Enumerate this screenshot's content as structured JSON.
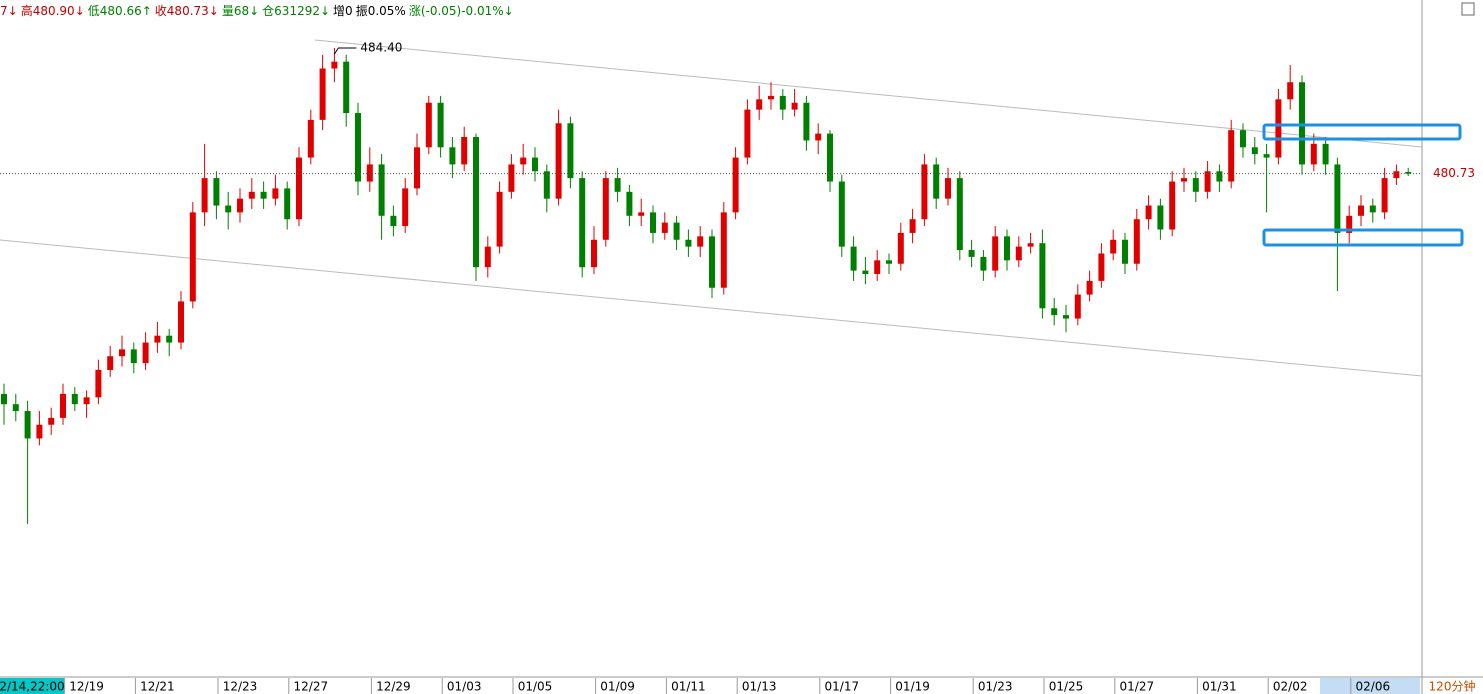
{
  "chart_data": {
    "type": "candlestick",
    "header": [
      {
        "text": "7↓",
        "color": "#c00000"
      },
      {
        "text": "高480.90↓",
        "color": "#c00000"
      },
      {
        "text": "低480.66↑",
        "color": "#008000"
      },
      {
        "text": "收480.73↓",
        "color": "#c00000"
      },
      {
        "text": "量68↓",
        "color": "#008000"
      },
      {
        "text": "仓631292↓",
        "color": "#008000"
      },
      {
        "text": "增0",
        "color": "#000000"
      },
      {
        "text": "振0.05%",
        "color": "#000000"
      },
      {
        "text": "涨(-0.05)-0.01%↓",
        "color": "#008000"
      }
    ],
    "cursor_label": "2/14,22:00",
    "period": "120分钟",
    "max_label": "484.40",
    "up_color": "#e00000",
    "down_color": "#008000",
    "ylim": [
      466.24,
      485.8
    ],
    "categories": [
      null,
      null,
      null,
      null,
      null,
      null,
      null,
      "12/19",
      null,
      null,
      null,
      null,
      null,
      "12/21",
      null,
      null,
      null,
      null,
      null,
      null,
      "12/23",
      null,
      null,
      null,
      null,
      null,
      "12/27",
      null,
      null,
      null,
      null,
      null,
      null,
      "12/29",
      null,
      null,
      null,
      null,
      null,
      "01/03",
      null,
      null,
      null,
      null,
      null,
      "01/05",
      null,
      null,
      null,
      null,
      null,
      null,
      "01/09",
      null,
      null,
      null,
      null,
      null,
      "01/11",
      null,
      null,
      null,
      null,
      null,
      "01/13",
      null,
      null,
      null,
      null,
      null,
      null,
      "01/17",
      null,
      null,
      null,
      null,
      null,
      "01/19",
      null,
      null,
      null,
      null,
      null,
      null,
      "01/23",
      null,
      null,
      null,
      null,
      null,
      "01/25",
      null,
      null,
      null,
      null,
      null,
      "01/27",
      null,
      null,
      null,
      null,
      null,
      null,
      "01/31",
      null,
      null,
      null,
      null,
      null,
      "02/02",
      null,
      null,
      null,
      null,
      null,
      null,
      "02/06",
      null,
      null,
      null
    ],
    "ohlc": [
      [
        474.3,
        474.6,
        473.4,
        474.0
      ],
      [
        474.0,
        474.3,
        473.5,
        473.8
      ],
      [
        473.8,
        474.1,
        470.5,
        473.0
      ],
      [
        473.0,
        473.8,
        472.8,
        473.4
      ],
      [
        473.4,
        473.9,
        473.1,
        473.6
      ],
      [
        473.6,
        474.6,
        473.4,
        474.3
      ],
      [
        474.3,
        474.5,
        473.8,
        474.0
      ],
      [
        474.0,
        474.4,
        473.6,
        474.2
      ],
      [
        474.2,
        475.3,
        474.0,
        475.0
      ],
      [
        475.0,
        475.7,
        474.8,
        475.4
      ],
      [
        475.4,
        476.0,
        475.1,
        475.6
      ],
      [
        475.6,
        475.8,
        474.9,
        475.2
      ],
      [
        475.2,
        476.1,
        475.0,
        475.8
      ],
      [
        475.8,
        476.4,
        475.5,
        476.0
      ],
      [
        476.0,
        476.2,
        475.4,
        475.8
      ],
      [
        475.8,
        477.3,
        475.6,
        477.0
      ],
      [
        477.0,
        479.9,
        476.8,
        479.6
      ],
      [
        479.6,
        481.6,
        479.2,
        480.6
      ],
      [
        480.6,
        480.8,
        479.4,
        479.8
      ],
      [
        479.8,
        480.2,
        479.1,
        479.6
      ],
      [
        479.6,
        480.3,
        479.3,
        480.0
      ],
      [
        480.0,
        480.6,
        479.7,
        480.2
      ],
      [
        480.2,
        480.5,
        479.7,
        480.0
      ],
      [
        480.0,
        480.7,
        479.8,
        480.3
      ],
      [
        480.3,
        480.5,
        479.1,
        479.4
      ],
      [
        479.4,
        481.5,
        479.2,
        481.2
      ],
      [
        481.2,
        482.6,
        481.0,
        482.3
      ],
      [
        482.3,
        484.2,
        482.0,
        483.8
      ],
      [
        483.8,
        484.4,
        483.4,
        484.0
      ],
      [
        484.0,
        484.2,
        482.1,
        482.5
      ],
      [
        482.5,
        482.8,
        480.1,
        480.5
      ],
      [
        480.5,
        481.5,
        480.2,
        481.0
      ],
      [
        481.0,
        481.3,
        478.8,
        479.5
      ],
      [
        479.5,
        479.8,
        478.9,
        479.2
      ],
      [
        479.2,
        480.6,
        479.0,
        480.3
      ],
      [
        480.3,
        481.9,
        480.1,
        481.5
      ],
      [
        481.5,
        483.0,
        481.3,
        482.8
      ],
      [
        482.8,
        483.0,
        481.2,
        481.5
      ],
      [
        481.5,
        481.8,
        480.6,
        481.0
      ],
      [
        481.0,
        482.1,
        480.8,
        481.8
      ],
      [
        481.8,
        481.9,
        477.6,
        478.0
      ],
      [
        478.0,
        478.9,
        477.7,
        478.6
      ],
      [
        478.6,
        480.5,
        478.4,
        480.2
      ],
      [
        480.2,
        481.3,
        480.0,
        481.0
      ],
      [
        481.0,
        481.6,
        480.7,
        481.2
      ],
      [
        481.2,
        481.5,
        480.5,
        480.8
      ],
      [
        480.8,
        481.0,
        479.6,
        480.0
      ],
      [
        480.0,
        482.6,
        479.8,
        482.2
      ],
      [
        482.2,
        482.4,
        480.3,
        480.6
      ],
      [
        480.6,
        480.8,
        477.7,
        478.0
      ],
      [
        478.0,
        479.2,
        477.8,
        478.8
      ],
      [
        478.8,
        480.8,
        478.6,
        480.6
      ],
      [
        480.6,
        480.9,
        479.9,
        480.2
      ],
      [
        480.2,
        480.4,
        479.2,
        479.5
      ],
      [
        479.5,
        480.0,
        479.2,
        479.6
      ],
      [
        479.6,
        479.8,
        478.7,
        479.0
      ],
      [
        479.0,
        479.6,
        478.8,
        479.3
      ],
      [
        479.3,
        479.5,
        478.5,
        478.8
      ],
      [
        478.8,
        479.1,
        478.3,
        478.6
      ],
      [
        478.6,
        479.2,
        478.3,
        478.9
      ],
      [
        478.9,
        479.1,
        477.1,
        477.4
      ],
      [
        477.4,
        479.9,
        477.2,
        479.6
      ],
      [
        479.6,
        481.5,
        479.4,
        481.2
      ],
      [
        481.2,
        482.9,
        481.0,
        482.6
      ],
      [
        482.6,
        483.3,
        482.3,
        482.9
      ],
      [
        482.9,
        483.4,
        482.6,
        483.0
      ],
      [
        483.0,
        483.2,
        482.3,
        482.6
      ],
      [
        482.6,
        483.2,
        482.4,
        482.8
      ],
      [
        482.8,
        483.0,
        481.4,
        481.7
      ],
      [
        481.7,
        482.2,
        481.3,
        481.9
      ],
      [
        481.9,
        482.0,
        480.2,
        480.5
      ],
      [
        480.5,
        480.7,
        478.3,
        478.6
      ],
      [
        478.6,
        478.9,
        477.6,
        477.9
      ],
      [
        477.9,
        478.3,
        477.5,
        477.8
      ],
      [
        477.8,
        478.5,
        477.6,
        478.2
      ],
      [
        478.2,
        478.4,
        477.8,
        478.1
      ],
      [
        478.1,
        479.3,
        477.9,
        479.0
      ],
      [
        479.0,
        479.7,
        478.7,
        479.4
      ],
      [
        479.4,
        481.3,
        479.2,
        481.0
      ],
      [
        481.0,
        481.2,
        479.7,
        480.0
      ],
      [
        480.0,
        480.9,
        479.8,
        480.6
      ],
      [
        480.6,
        480.8,
        478.2,
        478.5
      ],
      [
        478.5,
        478.8,
        478.0,
        478.3
      ],
      [
        478.3,
        478.5,
        477.6,
        477.9
      ],
      [
        477.9,
        479.2,
        477.7,
        478.9
      ],
      [
        478.9,
        479.1,
        477.9,
        478.2
      ],
      [
        478.2,
        478.9,
        478.0,
        478.6
      ],
      [
        478.6,
        479.0,
        478.4,
        478.7
      ],
      [
        478.7,
        479.1,
        476.5,
        476.8
      ],
      [
        476.8,
        477.1,
        476.3,
        476.6
      ],
      [
        476.6,
        476.9,
        476.1,
        476.5
      ],
      [
        476.5,
        477.5,
        476.3,
        477.2
      ],
      [
        477.2,
        477.9,
        477.0,
        477.6
      ],
      [
        477.6,
        478.7,
        477.4,
        478.4
      ],
      [
        478.4,
        479.1,
        478.2,
        478.8
      ],
      [
        478.8,
        479.0,
        477.8,
        478.1
      ],
      [
        478.1,
        479.7,
        477.9,
        479.4
      ],
      [
        479.4,
        480.1,
        479.1,
        479.8
      ],
      [
        479.8,
        480.0,
        478.8,
        479.1
      ],
      [
        479.1,
        480.8,
        478.9,
        480.5
      ],
      [
        480.5,
        480.9,
        480.2,
        480.6
      ],
      [
        480.6,
        480.8,
        479.9,
        480.2
      ],
      [
        480.2,
        481.1,
        480.0,
        480.8
      ],
      [
        480.8,
        481.0,
        480.2,
        480.5
      ],
      [
        480.5,
        482.3,
        480.3,
        482.0
      ],
      [
        482.0,
        482.2,
        481.2,
        481.5
      ],
      [
        481.5,
        481.8,
        481.0,
        481.3
      ],
      [
        481.3,
        481.6,
        479.6,
        481.2
      ],
      [
        481.2,
        483.2,
        481.0,
        482.9
      ],
      [
        482.9,
        483.9,
        482.6,
        483.4
      ],
      [
        483.4,
        483.6,
        480.7,
        481.0
      ],
      [
        481.0,
        481.9,
        480.8,
        481.6
      ],
      [
        481.6,
        481.8,
        480.7,
        481.0
      ],
      [
        481.0,
        481.2,
        477.3,
        479.0
      ],
      [
        479.0,
        479.8,
        478.7,
        479.5
      ],
      [
        479.5,
        480.1,
        479.2,
        479.8
      ],
      [
        479.8,
        480.0,
        479.3,
        479.6
      ],
      [
        479.6,
        480.9,
        479.4,
        480.6
      ],
      [
        480.6,
        481.0,
        480.4,
        480.8
      ],
      [
        480.78,
        480.9,
        480.66,
        480.73
      ]
    ]
  }
}
